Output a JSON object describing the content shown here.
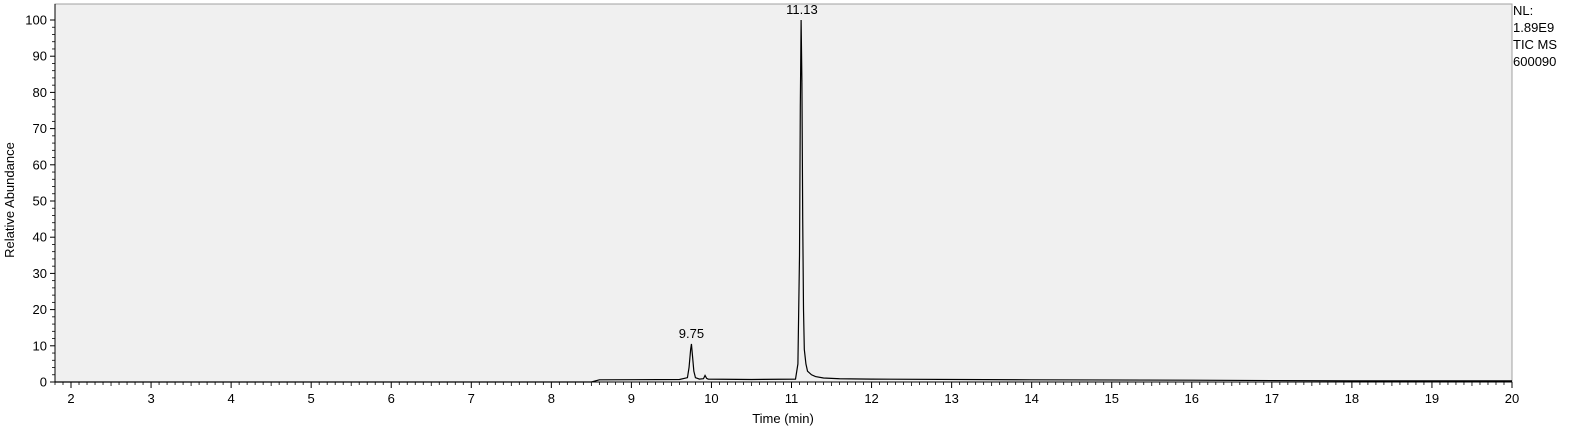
{
  "chart_data": {
    "type": "line",
    "title": "",
    "xlabel": "Time (min)",
    "ylabel": "Relative Abundance",
    "xlim": [
      1.8,
      20
    ],
    "ylim": [
      0,
      100
    ],
    "x_ticks": [
      "2",
      "3",
      "4",
      "5",
      "6",
      "7",
      "8",
      "9",
      "10",
      "11",
      "12",
      "13",
      "14",
      "15",
      "16",
      "17",
      "18",
      "19",
      "20"
    ],
    "y_ticks": [
      "0",
      "10",
      "20",
      "30",
      "40",
      "50",
      "60",
      "70",
      "80",
      "90",
      "100"
    ],
    "grid": false,
    "background_color": "#f0f0f0",
    "line_color": "#000000",
    "series": [
      {
        "x": [
          1.8,
          8.5,
          8.6,
          9.6,
          9.7,
          9.72,
          9.74,
          9.75,
          9.76,
          9.78,
          9.8,
          9.85,
          9.9,
          9.92,
          9.94,
          9.96,
          10.5,
          11.05,
          11.08,
          11.1,
          11.11,
          11.12,
          11.13,
          11.14,
          11.15,
          11.16,
          11.18,
          11.2,
          11.25,
          11.3,
          11.4,
          11.6,
          12.0,
          14.0,
          16.0,
          18.0,
          20.0
        ],
        "y": [
          0,
          0,
          0.6,
          0.7,
          1.2,
          4,
          9,
          10.5,
          8,
          3,
          1.2,
          0.8,
          0.9,
          1.8,
          1.0,
          0.8,
          0.7,
          0.8,
          5,
          35,
          76,
          100,
          83,
          45,
          20,
          9,
          5,
          3,
          2,
          1.5,
          1.1,
          0.9,
          0.8,
          0.6,
          0.5,
          0.3,
          0.3
        ]
      }
    ],
    "peak_labels": [
      {
        "x": 9.75,
        "y": 10.5,
        "text": "9.75"
      },
      {
        "x": 11.13,
        "y": 100,
        "text": "11.13"
      }
    ]
  },
  "info": {
    "nl_label": "NL:",
    "nl_value": "1.89E9",
    "trace": "TIC  MS",
    "sample": "600090"
  }
}
